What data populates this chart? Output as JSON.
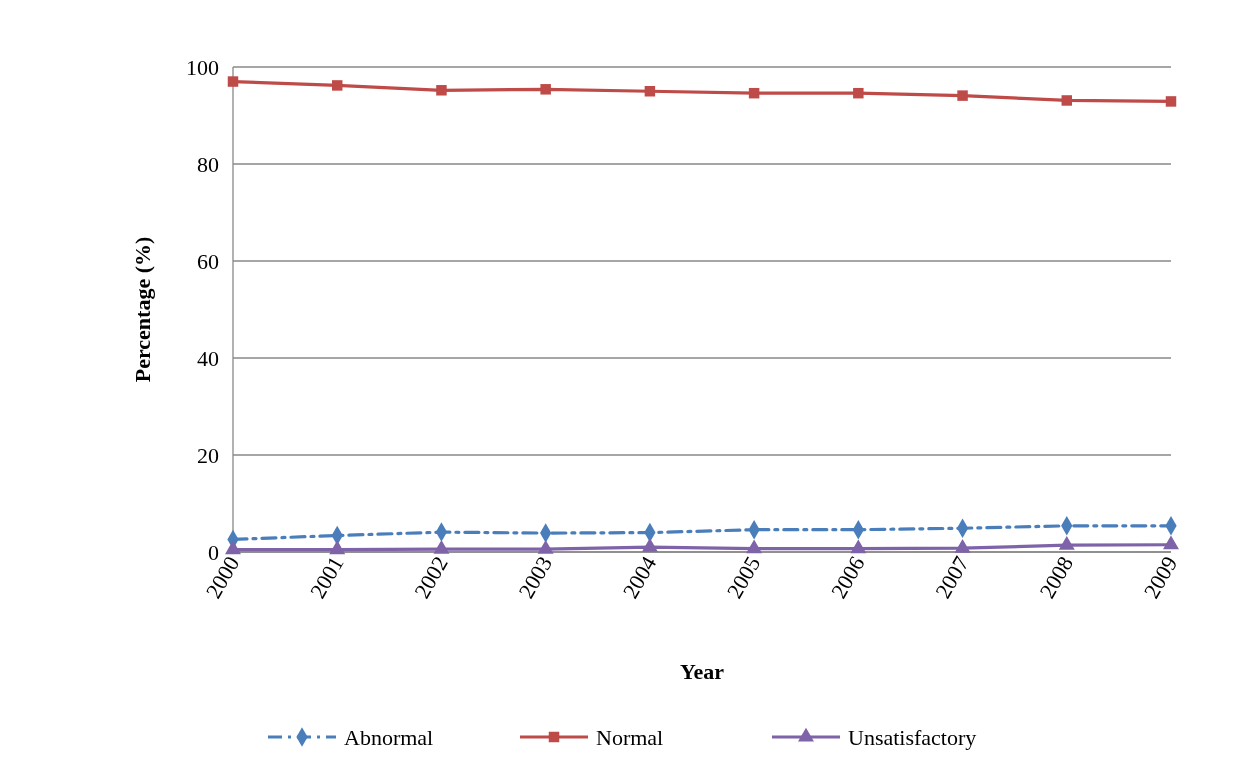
{
  "chart_data": {
    "type": "line",
    "xlabel": "Year",
    "ylabel": "Percentage  (%)",
    "categories": [
      "2000",
      "2001",
      "2002",
      "2003",
      "2004",
      "2005",
      "2006",
      "2007",
      "2008",
      "2009"
    ],
    "series": [
      {
        "name": "Abnormal",
        "color": "#4a7ebb",
        "marker": "diamond",
        "line_style": "dashed",
        "values": [
          2.6,
          3.4,
          4.1,
          3.9,
          4.0,
          4.6,
          4.6,
          4.9,
          5.4,
          5.4
        ]
      },
      {
        "name": "Normal",
        "color": "#be4b48",
        "marker": "square",
        "line_style": "solid",
        "values": [
          97.0,
          96.2,
          95.2,
          95.4,
          95.0,
          94.6,
          94.6,
          94.1,
          93.1,
          92.9
        ]
      },
      {
        "name": "Unsatisfactory",
        "color": "#7f63a8",
        "marker": "triangle",
        "line_style": "solid",
        "values": [
          0.5,
          0.5,
          0.6,
          0.6,
          1.0,
          0.7,
          0.7,
          0.8,
          1.4,
          1.5
        ]
      }
    ],
    "ylim": [
      0,
      100
    ],
    "yticks": [
      0,
      20,
      40,
      60,
      80,
      100
    ],
    "grid": "y",
    "legend": "bottom"
  }
}
